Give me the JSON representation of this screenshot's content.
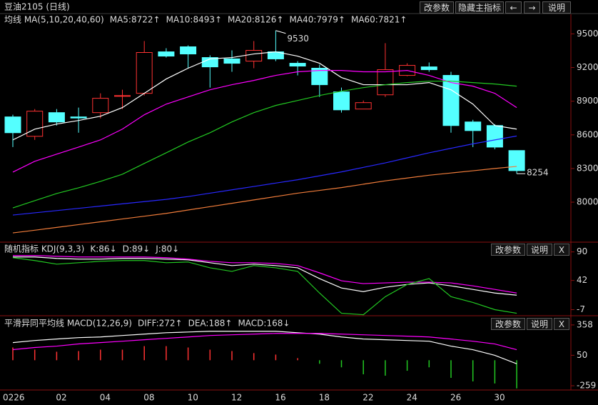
{
  "toolbar": {
    "main": [
      "改参数",
      "隐藏主指标",
      "←",
      "→",
      "说明"
    ],
    "kdj": [
      "改参数",
      "说明",
      "X"
    ],
    "macd": [
      "改参数",
      "说明",
      "X"
    ]
  },
  "chart_data": [
    {
      "type": "candlestick",
      "title": "豆油2105 (日线)",
      "indicator": "均线 MA(5,10,20,40,60)",
      "categories": [
        "0226",
        null,
        "02",
        null,
        "04",
        null,
        "08",
        null,
        "10",
        null,
        "12",
        null,
        "16",
        null,
        "18",
        null,
        "22",
        null,
        "24",
        null,
        "26",
        null,
        "30",
        null
      ],
      "open": [
        8760,
        8587,
        8798,
        8760,
        8798,
        8945,
        8970,
        9340,
        9385,
        9289,
        9277,
        9257,
        9340,
        9238,
        9194,
        8983,
        8830,
        8957,
        9130,
        9206,
        9130,
        8715,
        8683,
        8460
      ],
      "high": [
        8779,
        8830,
        8830,
        8843,
        8970,
        9002,
        9436,
        9372,
        9398,
        9309,
        9353,
        9436,
        9530,
        9257,
        9226,
        9021,
        8906,
        9417,
        9238,
        9245,
        9162,
        8734,
        8696,
        8460
      ],
      "low": [
        8491,
        8555,
        8683,
        8619,
        8747,
        8830,
        8951,
        9289,
        9194,
        9021,
        9162,
        9194,
        9257,
        9130,
        8938,
        8798,
        8830,
        8938,
        9123,
        9162,
        8619,
        8491,
        8472,
        8254
      ],
      "close": [
        8619,
        8811,
        8715,
        8750,
        8926,
        8950,
        9334,
        9302,
        9321,
        9206,
        9238,
        9353,
        9277,
        9213,
        9047,
        8823,
        8887,
        9181,
        9219,
        9181,
        8683,
        8638,
        8491,
        8281
      ],
      "up_color": "#ff3232",
      "down_color": "#54ffff",
      "series": [
        {
          "name": "MA5:8722↑",
          "color": "#ffffff",
          "values": [
            8555,
            8651,
            8696,
            8728,
            8766,
            8843,
            8970,
            9098,
            9194,
            9277,
            9289,
            9321,
            9340,
            9302,
            9238,
            9111,
            9047,
            9047,
            9047,
            9066,
            9002,
            8874,
            8683,
            8651
          ]
        },
        {
          "name": "MA10:8493↑",
          "color": "#ff00ff",
          "values": [
            8268,
            8364,
            8428,
            8491,
            8555,
            8651,
            8779,
            8874,
            8938,
            9002,
            9047,
            9085,
            9130,
            9162,
            9174,
            9174,
            9162,
            9162,
            9174,
            9130,
            9066,
            9034,
            8970,
            8843
          ]
        },
        {
          "name": "MA20:8126↑",
          "color": "#22c822",
          "values": [
            7949,
            8013,
            8077,
            8128,
            8185,
            8249,
            8345,
            8440,
            8536,
            8619,
            8715,
            8798,
            8862,
            8906,
            8951,
            8989,
            9021,
            9047,
            9066,
            9079,
            9079,
            9066,
            9053,
            9034
          ]
        },
        {
          "name": "MA40:7979↑",
          "color": "#2828ff",
          "values": [
            7885,
            7905,
            7925,
            7945,
            7965,
            7985,
            8005,
            8025,
            8050,
            8080,
            8110,
            8140,
            8170,
            8200,
            8235,
            8270,
            8310,
            8350,
            8395,
            8440,
            8480,
            8520,
            8555,
            8590
          ]
        },
        {
          "name": "MA60:7821↑",
          "color": "#f07c3a",
          "values": [
            7726,
            7750,
            7775,
            7800,
            7825,
            7850,
            7875,
            7900,
            7930,
            7960,
            7990,
            8020,
            8050,
            8080,
            8105,
            8130,
            8160,
            8190,
            8215,
            8240,
            8260,
            8280,
            8300,
            8319
          ]
        }
      ],
      "annotations": [
        "9530",
        "8254"
      ],
      "ylim": [
        7650,
        9560
      ],
      "yticks": [
        8000,
        8300,
        8600,
        8900,
        9200,
        9500
      ]
    },
    {
      "type": "line",
      "title": "随机指标 KDJ(9,3,3)",
      "series": [
        {
          "name": "K:86↓",
          "color": "#ffffff",
          "values": [
            81.5,
            81.5,
            79.1,
            77.9,
            77.9,
            79.1,
            79.1,
            77.9,
            76.7,
            71.8,
            67,
            69.4,
            67,
            63.3,
            45.1,
            29.4,
            23.3,
            30.6,
            35.4,
            37.9,
            33,
            27,
            20.9,
            17.3
          ]
        },
        {
          "name": "D:89↓",
          "color": "#ff00ff",
          "values": [
            83.9,
            83.9,
            82.7,
            81.5,
            81.5,
            81.5,
            81.5,
            80.3,
            77.9,
            74.2,
            71.8,
            71.8,
            70.6,
            67,
            54.8,
            41.5,
            36.7,
            37.9,
            39.1,
            39.1,
            37.9,
            33,
            27,
            20.9
          ]
        },
        {
          "name": "J:80↓",
          "color": "#22c822",
          "values": [
            80.3,
            75.5,
            69.4,
            71.8,
            74.2,
            75.5,
            75.5,
            71.8,
            73,
            63.3,
            57.3,
            67,
            63.3,
            57.3,
            20.9,
            -13.1,
            -15.5,
            14.8,
            35.4,
            45.1,
            14.8,
            5.1,
            -7,
            -13.1
          ]
        }
      ],
      "ylim": [
        -16,
        104
      ],
      "yticks": [
        -7,
        42,
        90
      ]
    },
    {
      "type": "macd",
      "title": "平滑异同平均线 MACD(12,26,9)",
      "series": [
        {
          "name": "DIFF:272↑",
          "color": "#ffffff",
          "values": [
            179,
            200,
            215,
            229,
            236,
            251,
            265,
            279,
            286,
            294,
            294,
            294,
            294,
            279,
            265,
            236,
            215,
            208,
            200,
            193,
            143,
            107,
            50,
            -36
          ]
        },
        {
          "name": "DEA:188↑",
          "color": "#ff00ff",
          "values": [
            107,
            129,
            143,
            165,
            179,
            193,
            208,
            222,
            236,
            251,
            258,
            265,
            272,
            272,
            272,
            265,
            258,
            251,
            244,
            236,
            215,
            193,
            165,
            107
          ]
        },
        {
          "name": "MACD:168↓",
          "color": "#22c822",
          "bars": true,
          "positive_color": "#ff3232",
          "negative_color": "#22c822",
          "values": [
            129,
            107,
            86,
            93,
            107,
            107,
            143,
            143,
            129,
            107,
            93,
            72,
            57,
            21,
            -36,
            -72,
            -143,
            -157,
            -107,
            -72,
            -179,
            -215,
            -236,
            -286
          ]
        }
      ],
      "ylim": [
        -295,
        437
      ],
      "yticks": [
        -259,
        50,
        358
      ]
    }
  ]
}
